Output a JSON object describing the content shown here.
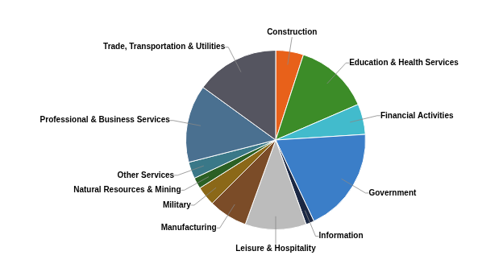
{
  "chart_data": {
    "type": "pie",
    "categories": [
      "Construction",
      "Education & Health Services",
      "Financial Activities",
      "Government",
      "Information",
      "Leisure & Hospitality",
      "Manufacturing",
      "Military",
      "Natural Resources & Mining",
      "Other Services",
      "Professional & Business Services",
      "Trade, Transportation & Utilities"
    ],
    "values": [
      5.0,
      13.5,
      5.5,
      19.0,
      1.5,
      11.0,
      7.0,
      3.5,
      2.0,
      3.0,
      14.0,
      15.0
    ],
    "colors": [
      "#E8611A",
      "#3C8C28",
      "#42BBCC",
      "#3B7EC8",
      "#1B2844",
      "#BCBCBC",
      "#7B4C28",
      "#8B6818",
      "#2B6024",
      "#3A7888",
      "#4A7090",
      "#555560"
    ]
  }
}
